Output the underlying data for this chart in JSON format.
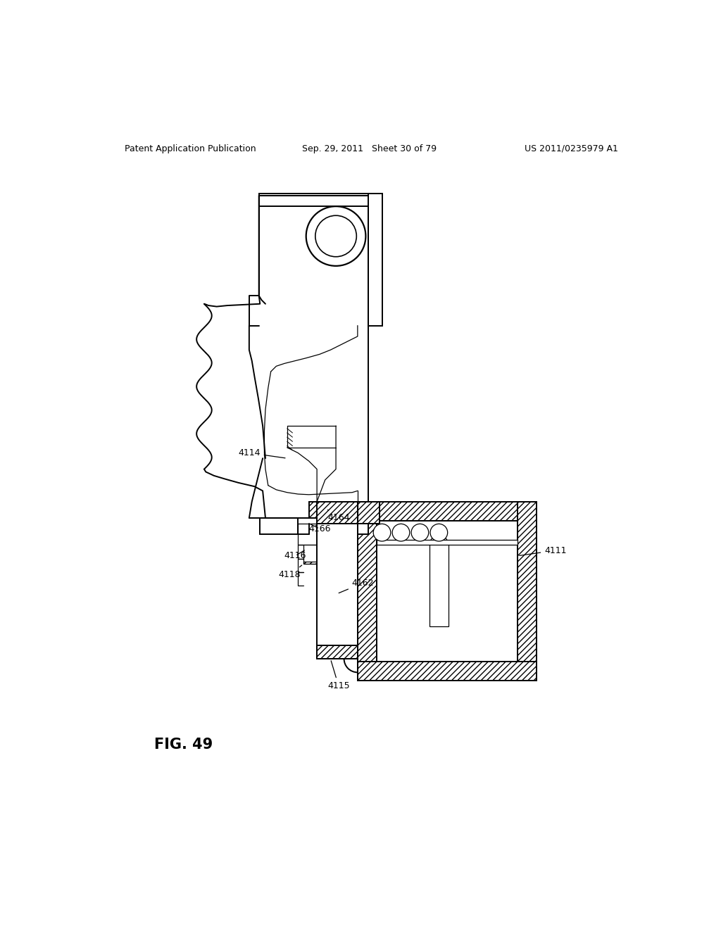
{
  "title_left": "Patent Application Publication",
  "title_center": "Sep. 29, 2011   Sheet 30 of 79",
  "title_right": "US 2011/0235979 A1",
  "fig_label": "FIG. 49",
  "background": "#ffffff",
  "line_color": "#000000",
  "lw_main": 1.4,
  "lw_thin": 0.9,
  "header_fontsize": 9,
  "label_fontsize": 9,
  "fig_fontsize": 15
}
